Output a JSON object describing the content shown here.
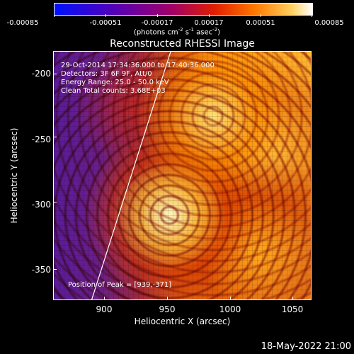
{
  "colorbar": {
    "ticks": [
      "-0.00085",
      "-0.00051",
      "-0.00017",
      "0.00017",
      "0.00051",
      "0.00085"
    ],
    "units_prefix": "(photons cm",
    "units_exp1": "-2",
    "units_mid1": " s",
    "units_exp2": "-1",
    "units_mid2": " asec",
    "units_exp3": "-2",
    "units_suffix": ")"
  },
  "plot": {
    "title": "Reconstructed RHESSI Image",
    "info_lines": [
      "29-Oct-2014 17:34:36.000 to 17:40:36.000",
      "Detectors: 3F 6F 9F, Att/0",
      "Energy Range: 25.0 - 50.0 keV",
      "Clean    Total counts: 3.68E+03"
    ],
    "peak_label": "Position of Peak = [939,-371]",
    "xlabel": "Heliocentric X (arcsec)",
    "ylabel": "Heliocentric Y (arcsec)",
    "x_ticks": [
      "900",
      "950",
      "1000",
      "1050"
    ],
    "y_ticks": [
      "-200",
      "-250",
      "-300",
      "-350"
    ]
  },
  "colors": {
    "limb_line": "#ffffff",
    "background": "#000000"
  },
  "footer": {
    "timestamp": "18-May-2022 21:00"
  }
}
